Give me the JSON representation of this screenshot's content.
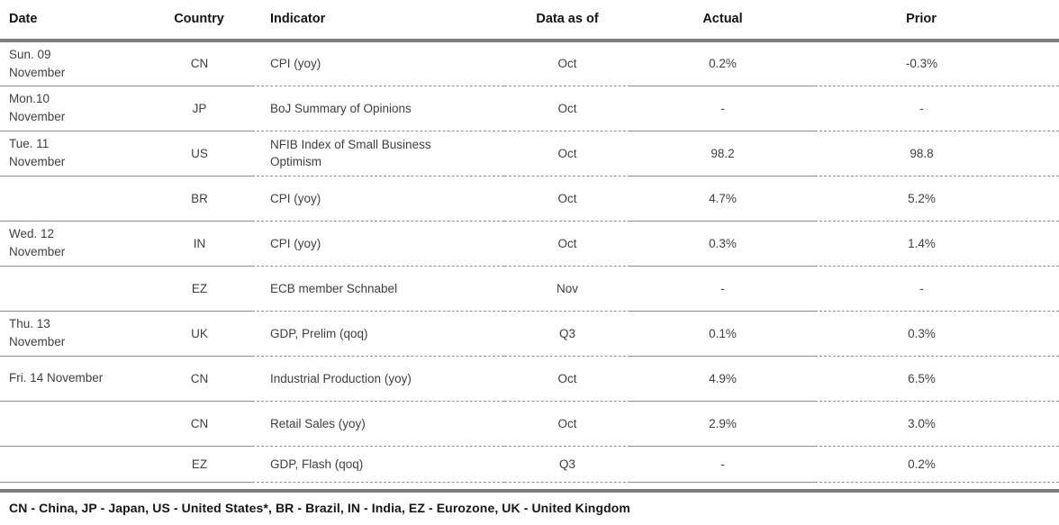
{
  "table": {
    "columns": [
      "Date",
      "Country",
      "Indicator",
      "Data as of",
      "Actual",
      "Prior"
    ],
    "rows": [
      {
        "date": "Sun. 09\nNovember",
        "country": "CN",
        "indicator": "CPI (yoy)",
        "data_as_of": "Oct",
        "actual": "0.2%",
        "prior": "-0.3%"
      },
      {
        "date": "Mon.10\nNovember",
        "country": "JP",
        "indicator": "BoJ Summary of Opinions",
        "data_as_of": "Oct",
        "actual": "-",
        "prior": "-"
      },
      {
        "date": "Tue. 11\nNovember",
        "country": "US",
        "indicator": "NFIB Index of Small Business Optimism",
        "data_as_of": "Oct",
        "actual": "98.2",
        "prior": "98.8"
      },
      {
        "date": "",
        "country": "BR",
        "indicator": "CPI (yoy)",
        "data_as_of": "Oct",
        "actual": "4.7%",
        "prior": "5.2%"
      },
      {
        "date": "Wed. 12\nNovember",
        "country": "IN",
        "indicator": "CPI (yoy)",
        "data_as_of": "Oct",
        "actual": "0.3%",
        "prior": "1.4%"
      },
      {
        "date": "",
        "country": "EZ",
        "indicator": "ECB member Schnabel",
        "data_as_of": "Nov",
        "actual": "-",
        "prior": "-"
      },
      {
        "date": "Thu. 13\nNovember",
        "country": "UK",
        "indicator": "GDP, Prelim (qoq)",
        "data_as_of": "Q3",
        "actual": "0.1%",
        "prior": "0.3%"
      },
      {
        "date": "Fri. 14 November",
        "country": "CN",
        "indicator": "Industrial Production (yoy)",
        "data_as_of": "Oct",
        "actual": "4.9%",
        "prior": "6.5%"
      },
      {
        "date": "",
        "country": "CN",
        "indicator": "Retail Sales (yoy)",
        "data_as_of": "Oct",
        "actual": "2.9%",
        "prior": "3.0%"
      },
      {
        "date": "",
        "country": "EZ",
        "indicator": "GDP, Flash (qoq)",
        "data_as_of": "Q3",
        "actual": "-",
        "prior": "0.2%"
      }
    ]
  },
  "footnote": "CN - China, JP - Japan, US - United States*, BR - Brazil, IN - India, EZ - Eurozone, UK - United Kingdom",
  "colors": {
    "thick_rule": "#7e7e7e",
    "row_line": "#8f8f8f",
    "header_text": "#141414",
    "body_text": "#3f3f3f"
  }
}
